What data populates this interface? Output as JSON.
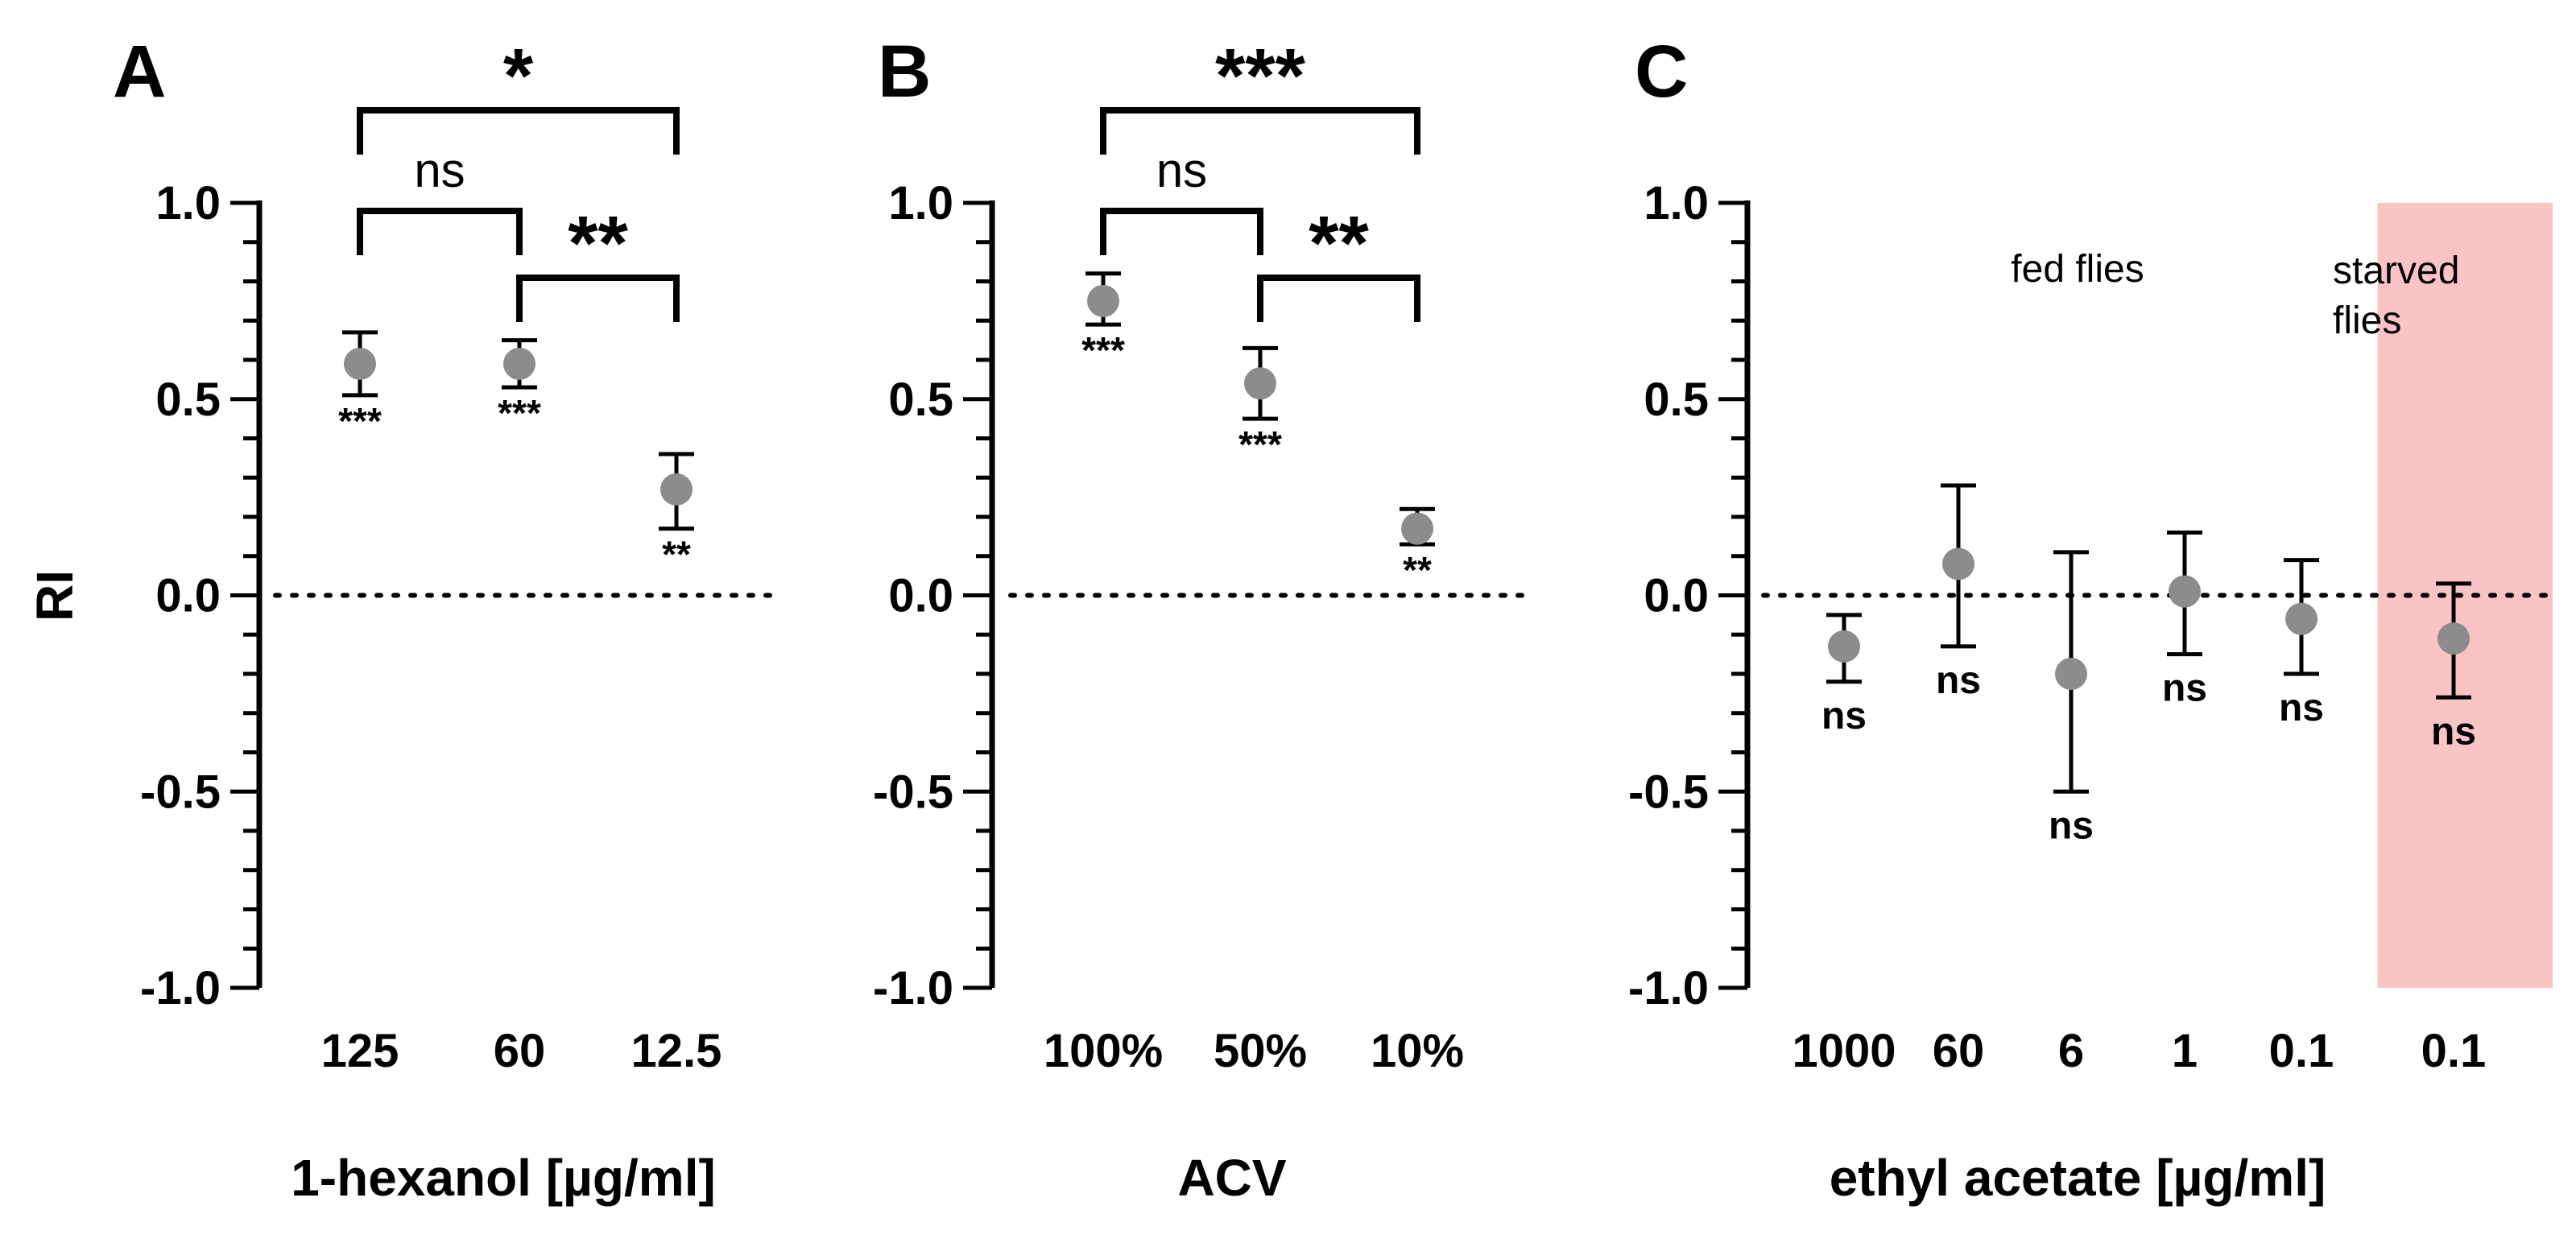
{
  "ylabel": "RI",
  "colors": {
    "point": "#8c8c8c",
    "axis": "#000000",
    "shade": "#fbc4c4"
  },
  "chart_data": [
    {
      "panel": "A",
      "type": "scatter",
      "xlabel": "1-hexanol [µg/ml]",
      "ylabel": "RI",
      "ylim": [
        -1.0,
        1.0
      ],
      "yticks": [
        "1.0",
        "0.5",
        "0.0",
        "-0.5",
        "-1.0"
      ],
      "categories": [
        "125",
        "60",
        "12.5"
      ],
      "values": [
        0.59,
        0.59,
        0.27
      ],
      "err_low": [
        0.51,
        0.53,
        0.17
      ],
      "err_high": [
        0.67,
        0.65,
        0.36
      ],
      "point_labels": [
        "***",
        "***",
        "**"
      ],
      "reference_line": 0.0,
      "brackets": [
        {
          "from": 0,
          "to": 2,
          "label": "*",
          "level": 2
        },
        {
          "from": 0,
          "to": 1,
          "label": "ns",
          "level": 1
        },
        {
          "from": 1,
          "to": 2,
          "label": "**",
          "level": 0
        }
      ]
    },
    {
      "panel": "B",
      "type": "scatter",
      "xlabel": "ACV",
      "ylabel": "",
      "ylim": [
        -1.0,
        1.0
      ],
      "yticks": [
        "1.0",
        "0.5",
        "0.0",
        "-0.5",
        "-1.0"
      ],
      "categories": [
        "100%",
        "50%",
        "10%"
      ],
      "values": [
        0.75,
        0.54,
        0.17
      ],
      "err_low": [
        0.69,
        0.45,
        0.13
      ],
      "err_high": [
        0.82,
        0.63,
        0.22
      ],
      "point_labels": [
        "***",
        "***",
        "**"
      ],
      "reference_line": 0.0,
      "brackets": [
        {
          "from": 0,
          "to": 2,
          "label": "***",
          "level": 2
        },
        {
          "from": 0,
          "to": 1,
          "label": "ns",
          "level": 1
        },
        {
          "from": 1,
          "to": 2,
          "label": "**",
          "level": 0
        }
      ]
    },
    {
      "panel": "C",
      "type": "scatter",
      "xlabel": "ethyl acetate [µg/ml]",
      "ylabel": "",
      "ylim": [
        -1.0,
        1.0
      ],
      "yticks": [
        "1.0",
        "0.5",
        "0.0",
        "-0.5",
        "-1.0"
      ],
      "categories": [
        "1000",
        "60",
        "6",
        "1",
        "0.1",
        "0.1"
      ],
      "values": [
        -0.13,
        0.08,
        -0.2,
        0.01,
        -0.06,
        -0.11
      ],
      "err_low": [
        -0.22,
        -0.13,
        -0.5,
        -0.15,
        -0.2,
        -0.26
      ],
      "err_high": [
        -0.05,
        0.28,
        0.11,
        0.16,
        0.09,
        0.03
      ],
      "point_labels": [
        "ns",
        "ns",
        "ns",
        "ns",
        "ns",
        "ns"
      ],
      "reference_line": 0.0,
      "annotations": [
        "fed flies",
        "starved flies"
      ],
      "shaded_region": "last category (starved flies)"
    }
  ]
}
